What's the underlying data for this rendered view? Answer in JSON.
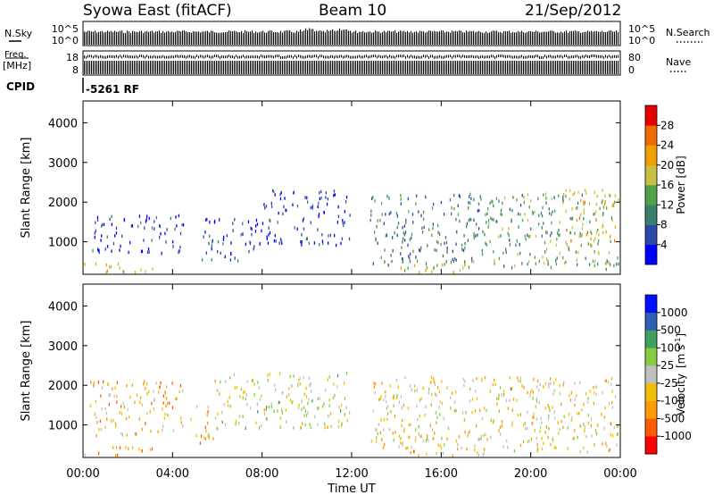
{
  "header": {
    "station": "Syowa East (fitACF)",
    "beam": "Beam 10",
    "date": "21/Sep/2012"
  },
  "summary_panels": {
    "nsky_label": "N.Sky",
    "nsearch_label": "N.Search",
    "freq_label_1": "Freq.",
    "freq_label_2": "[MHz]",
    "nave_label": "Nave",
    "cpid_label": "CPID",
    "cpid_value": "-5261 RF",
    "noise_ticks": [
      "10^5",
      "10^0"
    ],
    "freq_ticks": [
      "18",
      "8"
    ],
    "nave_ticks": [
      "80",
      "0"
    ]
  },
  "colors": {
    "power_scale": [
      "#0000ff",
      "#2b4aa8",
      "#3a7f6e",
      "#4fa24a",
      "#c7c040",
      "#f0a000",
      "#f06a00",
      "#e60000"
    ],
    "velocity_scale": [
      "#ff0000",
      "#ff5a00",
      "#ff9a00",
      "#f0c000",
      "#bfbfbf",
      "#88cc44",
      "#40a060",
      "#2f5fb0",
      "#0010ff"
    ]
  },
  "chart_data": [
    {
      "type": "heatmap",
      "title": "Power",
      "xlabel": "Time UT",
      "ylabel": "Slant Range [km]",
      "x_ticks": [
        "00:00",
        "04:00",
        "08:00",
        "12:00",
        "16:00",
        "20:00",
        "00:00"
      ],
      "y_ticks": [
        1000,
        2000,
        3000,
        4000
      ],
      "xlim_hours": [
        0,
        24
      ],
      "ylim_km": [
        180,
        4550
      ],
      "colorbar": {
        "label": "Power [dB]",
        "ticks": [
          "4",
          "8",
          "12",
          "16",
          "20",
          "24",
          "28"
        ],
        "range": [
          0,
          30
        ]
      },
      "regions": [
        {
          "t0": 0.0,
          "t1": 3.2,
          "r0": 200,
          "r1": 450,
          "level": 0.6
        },
        {
          "t0": 0.3,
          "t1": 4.5,
          "r0": 700,
          "r1": 1700,
          "level": 0.15
        },
        {
          "t0": 5.3,
          "t1": 8.0,
          "r0": 500,
          "r1": 1600,
          "level": 0.15
        },
        {
          "t0": 8.0,
          "t1": 11.9,
          "r0": 900,
          "r1": 2300,
          "level": 0.12
        },
        {
          "t0": 12.8,
          "t1": 18.0,
          "r0": 400,
          "r1": 2200,
          "level": 0.3
        },
        {
          "t0": 14.0,
          "t1": 18.0,
          "r0": 200,
          "r1": 500,
          "level": 0.55
        },
        {
          "t0": 18.0,
          "t1": 23.9,
          "r0": 300,
          "r1": 2200,
          "level": 0.4
        },
        {
          "t0": 21.5,
          "t1": 23.8,
          "r0": 900,
          "r1": 2300,
          "level": 0.6
        }
      ]
    },
    {
      "type": "heatmap",
      "title": "Velocity",
      "xlabel": "Time UT",
      "ylabel": "Slant Range [km]",
      "x_ticks": [
        "00:00",
        "04:00",
        "08:00",
        "12:00",
        "16:00",
        "20:00",
        "00:00"
      ],
      "y_ticks": [
        1000,
        2000,
        3000,
        4000
      ],
      "xlim_hours": [
        0,
        24
      ],
      "ylim_km": [
        180,
        4550
      ],
      "colorbar": {
        "label": "Velocity [m s-1]",
        "label_main": "Velocity",
        "label_unit": "[m s",
        "label_sup": "-1",
        "label_end": "]",
        "ticks": [
          "-1000",
          "-500",
          "-100",
          "-25",
          "25",
          "100",
          "500",
          "1000"
        ]
      },
      "regions": [
        {
          "t0": 0.0,
          "t1": 3.2,
          "r0": 200,
          "r1": 450,
          "level": 0.3
        },
        {
          "t0": 0.3,
          "t1": 4.5,
          "r0": 700,
          "r1": 2100,
          "level": 0.35
        },
        {
          "t0": 4.8,
          "t1": 5.8,
          "r0": 500,
          "r1": 1500,
          "level": 0.35
        },
        {
          "t0": 5.8,
          "t1": 11.9,
          "r0": 900,
          "r1": 2300,
          "level": 0.5
        },
        {
          "t0": 12.8,
          "t1": 18.0,
          "r0": 400,
          "r1": 2200,
          "level": 0.45
        },
        {
          "t0": 14.0,
          "t1": 18.0,
          "r0": 200,
          "r1": 500,
          "level": 0.35
        },
        {
          "t0": 18.0,
          "t1": 23.9,
          "r0": 300,
          "r1": 2200,
          "level": 0.42
        }
      ]
    }
  ]
}
